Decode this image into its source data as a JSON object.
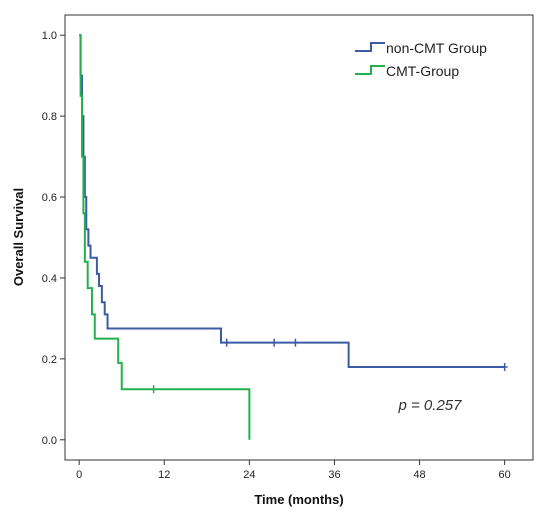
{
  "chart_data": {
    "type": "line",
    "subtype": "kaplan-meier-step",
    "xlabel": "Time (months)",
    "ylabel": "Overall Survival",
    "xlim": [
      -2,
      64
    ],
    "ylim": [
      -0.05,
      1.05
    ],
    "x_ticks": [
      0,
      12,
      24,
      36,
      48,
      60
    ],
    "y_ticks": [
      0.0,
      0.2,
      0.4,
      0.6,
      0.8,
      1.0
    ],
    "x_tick_labels": [
      "0",
      "12",
      "24",
      "36",
      "48",
      "60"
    ],
    "y_tick_labels": [
      "0.0",
      "0.2",
      "0.4",
      "0.6",
      "0.8",
      "1.0"
    ],
    "grid": false,
    "legend_position": "top-right",
    "annotation": "p = 0.257",
    "series": [
      {
        "name": "non-CMT Group",
        "color": "#3b5ba5",
        "steps": [
          [
            0,
            1.0
          ],
          [
            0.2,
            0.9
          ],
          [
            0.4,
            0.8
          ],
          [
            0.6,
            0.7
          ],
          [
            0.8,
            0.6
          ],
          [
            1.0,
            0.52
          ],
          [
            1.3,
            0.48
          ],
          [
            1.6,
            0.45
          ],
          [
            2.5,
            0.41
          ],
          [
            2.8,
            0.38
          ],
          [
            3.2,
            0.34
          ],
          [
            3.6,
            0.31
          ],
          [
            4.0,
            0.275
          ],
          [
            20.0,
            0.24
          ],
          [
            38.0,
            0.18
          ],
          [
            60.0,
            0.18
          ]
        ],
        "censored": [
          [
            20.8,
            0.24
          ],
          [
            27.5,
            0.24
          ],
          [
            30.5,
            0.24
          ],
          [
            60.0,
            0.18
          ]
        ]
      },
      {
        "name": "CMT-Group",
        "color": "#22b14c",
        "steps": [
          [
            0,
            1.0
          ],
          [
            0.2,
            0.85
          ],
          [
            0.4,
            0.7
          ],
          [
            0.6,
            0.56
          ],
          [
            0.8,
            0.44
          ],
          [
            1.2,
            0.375
          ],
          [
            1.8,
            0.31
          ],
          [
            2.2,
            0.25
          ],
          [
            5.5,
            0.19
          ],
          [
            6.0,
            0.125
          ],
          [
            24.0,
            0.0
          ]
        ],
        "censored": [
          [
            10.5,
            0.125
          ]
        ]
      }
    ]
  }
}
